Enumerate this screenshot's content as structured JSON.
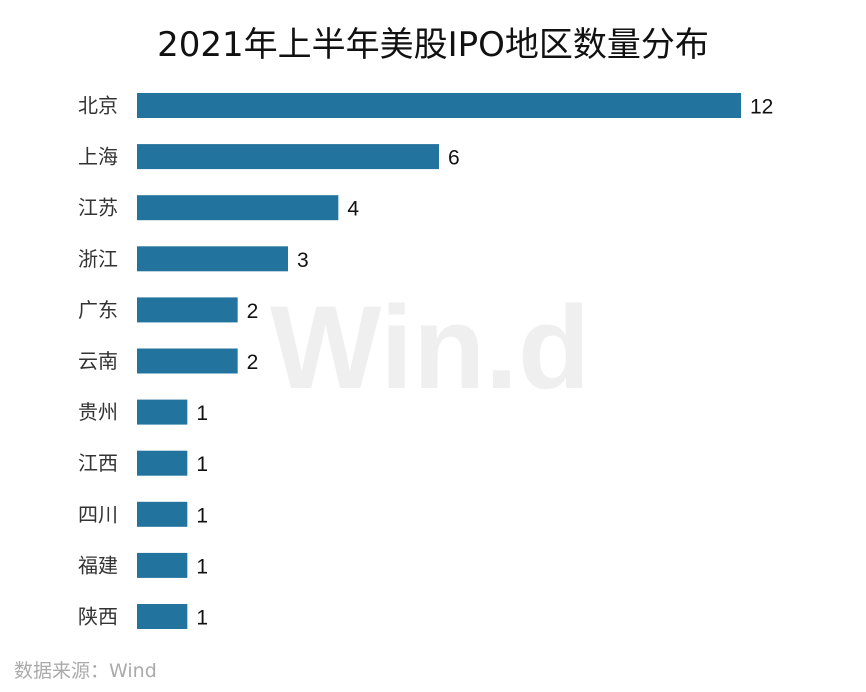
{
  "chart_data": {
    "type": "bar",
    "orientation": "horizontal",
    "title": "2021年上半年美股IPO地区数量分布",
    "categories": [
      "北京",
      "上海",
      "江苏",
      "浙江",
      "广东",
      "云南",
      "贵州",
      "江西",
      "四川",
      "福建",
      "陕西"
    ],
    "values": [
      12,
      6,
      4,
      3,
      2,
      2,
      1,
      1,
      1,
      1,
      1
    ],
    "xlim": [
      0,
      12
    ],
    "grid": false,
    "legend": "none",
    "bar_color": "#23739f"
  },
  "watermark": "Win.d",
  "source": "数据来源：Wind"
}
